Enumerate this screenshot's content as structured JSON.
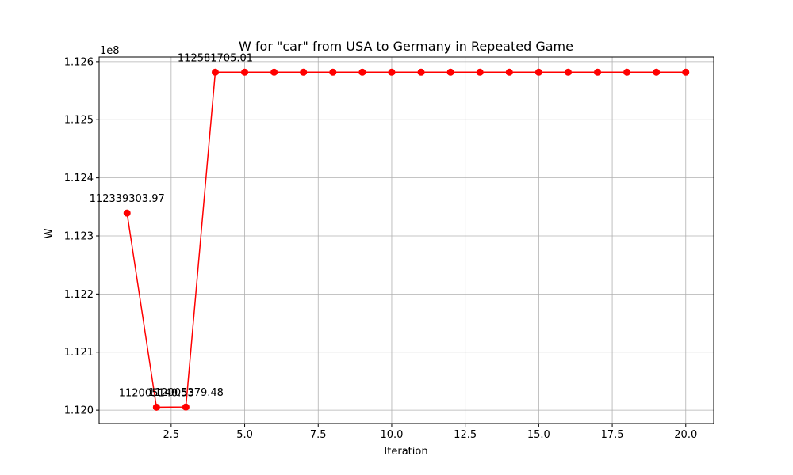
{
  "chart_data": {
    "type": "line",
    "title": "W for \"car\" from USA to Germany in Repeated Game",
    "xlabel": "Iteration",
    "ylabel": "W",
    "y_offset_label": "1e8",
    "grid": true,
    "xlim": [
      0.05,
      20.95
    ],
    "ylim": [
      111977000,
      112608000
    ],
    "x_ticks": [
      2.5,
      5.0,
      7.5,
      10.0,
      12.5,
      15.0,
      17.5,
      20.0
    ],
    "x_tick_labels": [
      "2.5",
      "5.0",
      "7.5",
      "10.0",
      "12.5",
      "15.0",
      "17.5",
      "20.0"
    ],
    "y_ticks": [
      112000000,
      112100000,
      112200000,
      112300000,
      112400000,
      112500000,
      112600000
    ],
    "y_tick_labels": [
      "1.120",
      "1.121",
      "1.122",
      "1.123",
      "1.124",
      "1.125",
      "1.126"
    ],
    "series": [
      {
        "color": "#ff0000",
        "marker": "circle",
        "x": [
          1,
          2,
          3,
          4,
          5,
          6,
          7,
          8,
          9,
          10,
          11,
          12,
          13,
          14,
          15,
          16,
          17,
          18,
          19,
          20
        ],
        "y": [
          112339303.97,
          112005140.53,
          112005379.48,
          112581705.01,
          112581705.01,
          112581705.01,
          112581705.01,
          112581705.01,
          112581705.01,
          112581705.01,
          112581705.01,
          112581705.01,
          112581705.01,
          112581705.01,
          112581705.01,
          112581705.01,
          112581705.01,
          112581705.01,
          112581705.01,
          112581705.01
        ]
      }
    ],
    "annotations": [
      {
        "x": 1,
        "y": 112339303.97,
        "text": "112339303.97"
      },
      {
        "x": 2,
        "y": 112005140.53,
        "text": "112005140.53"
      },
      {
        "x": 3,
        "y": 112005379.48,
        "text": "112005379.48"
      },
      {
        "x": 4,
        "y": 112581705.01,
        "text": "112581705.01"
      }
    ]
  }
}
